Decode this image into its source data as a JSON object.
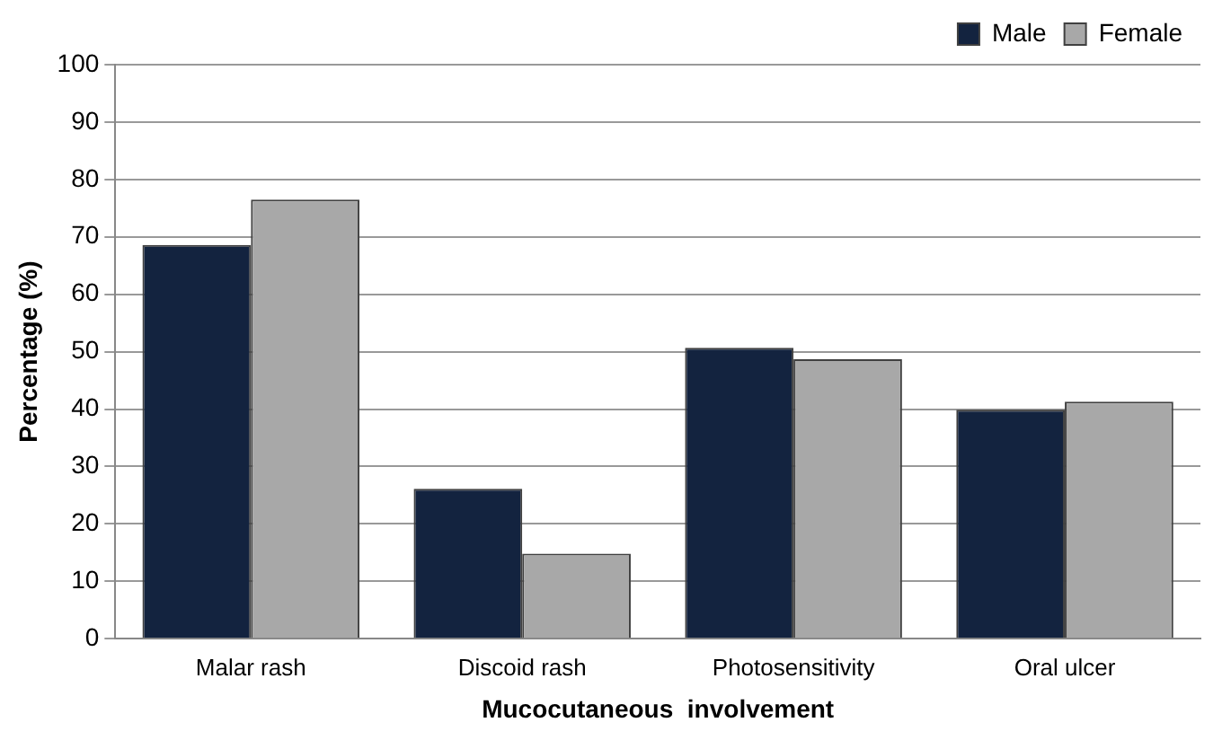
{
  "chart_data": {
    "type": "bar",
    "xlabel": "Mucocutaneous  involvement",
    "ylabel": "Percentage (%)",
    "categories": [
      "Malar rash",
      "Discoid rash",
      "Photosensitivity",
      "Oral ulcer"
    ],
    "series": [
      {
        "name": "Male",
        "color": "#13233f",
        "values": [
          68.6,
          26.1,
          50.7,
          39.9
        ]
      },
      {
        "name": "Female",
        "color": "#a8a8a8",
        "values": [
          76.5,
          14.8,
          48.7,
          41.3
        ]
      }
    ],
    "ylim": [
      0,
      100
    ],
    "yticks": [
      0,
      10,
      20,
      30,
      40,
      50,
      60,
      70,
      80,
      90,
      100
    ],
    "grid": "y",
    "legend": "top right"
  }
}
